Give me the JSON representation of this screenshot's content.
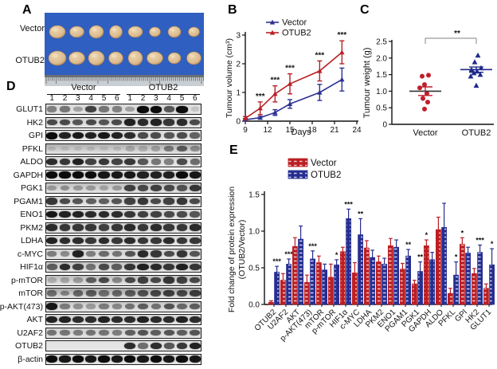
{
  "panel_labels": {
    "A": "A",
    "B": "B",
    "C": "C",
    "D": "D",
    "E": "E"
  },
  "panel_a": {
    "photo_bg": "#2f5fc0",
    "tumor_fill": "#dcba8e",
    "tumor_edge": "#a87e4f",
    "ruler_bg": "#c9ced3",
    "rows": [
      {
        "label": "Vector",
        "y": 24,
        "sizes": [
          [
            10,
            8
          ],
          [
            9,
            7
          ],
          [
            9,
            8
          ],
          [
            8,
            8
          ],
          [
            9,
            7
          ],
          [
            7,
            6
          ],
          [
            8,
            7
          ],
          [
            7,
            6
          ]
        ]
      },
      {
        "label": "OTUB2",
        "y": 57,
        "sizes": [
          [
            11,
            9
          ],
          [
            10,
            8
          ],
          [
            10,
            9
          ],
          [
            9,
            8
          ],
          [
            9,
            9
          ],
          [
            10,
            8
          ],
          [
            8,
            7
          ],
          [
            9,
            8
          ]
        ]
      }
    ]
  },
  "panel_d": {
    "group_headers": [
      "Vector",
      "OTUB2"
    ],
    "lanes": [
      "1",
      "2",
      "3",
      "4",
      "5",
      "6",
      "1",
      "2",
      "3",
      "4",
      "5",
      "6"
    ],
    "rows": [
      {
        "label": "GLUT1",
        "bg": "#d9d9d9",
        "bands": [
          0.45,
          0.5,
          0.3,
          0.75,
          0.5,
          0.45,
          0.3,
          1.0,
          1.0,
          0.65,
          1.0,
          0.12
        ]
      },
      {
        "label": "HK2",
        "bg": "#d4d4d4",
        "bands": [
          0.7,
          0.7,
          0.65,
          0.7,
          0.65,
          0.7,
          0.9,
          0.85,
          0.9,
          0.8,
          0.85,
          0.7
        ]
      },
      {
        "label": "GPI",
        "bg": "#dcdcdc",
        "bands": [
          1.0,
          0.9,
          0.95,
          0.9,
          0.95,
          0.9,
          0.85,
          0.7,
          0.7,
          0.65,
          0.7,
          0.6
        ]
      },
      {
        "label": "PFKL",
        "bg": "#aeaeae",
        "bands": [
          0.12,
          0.1,
          0.1,
          0.12,
          0.1,
          0.12,
          0.2,
          0.18,
          0.25,
          0.45,
          0.6,
          0.35
        ]
      },
      {
        "label": "ALDO",
        "bg": "#dcdcdc",
        "bands": [
          0.85,
          0.8,
          0.9,
          0.75,
          0.8,
          0.75,
          0.8,
          0.65,
          0.5,
          0.45,
          0.7,
          0.55
        ]
      },
      {
        "label": "GAPDH",
        "bg": "#d8d8d8",
        "bands": [
          1,
          1,
          1,
          1,
          0.95,
          0.95,
          0.95,
          0.9,
          0.9,
          0.9,
          1,
          0.95
        ]
      },
      {
        "label": "PGK1",
        "bg": "#bfbfbf",
        "bands": [
          0.3,
          0.35,
          0.3,
          0.3,
          0.25,
          0.3,
          0.75,
          0.7,
          0.75,
          0.7,
          0.65,
          0.8
        ]
      },
      {
        "label": "PGAM1",
        "bg": "#d4d4d4",
        "bands": [
          0.8,
          0.7,
          0.65,
          0.6,
          0.6,
          0.65,
          0.75,
          0.8,
          0.7,
          0.75,
          0.8,
          0.7
        ]
      },
      {
        "label": "ENO1",
        "bg": "#d8d8d8",
        "bands": [
          0.95,
          0.9,
          0.9,
          0.85,
          0.85,
          0.85,
          0.8,
          0.75,
          0.75,
          0.7,
          0.7,
          0.65
        ]
      },
      {
        "label": "PKM2",
        "bg": "#d4d4d4",
        "bands": [
          0.85,
          0.8,
          0.8,
          0.8,
          0.75,
          0.8,
          0.85,
          0.8,
          0.85,
          0.8,
          0.8,
          0.85
        ]
      },
      {
        "label": "LDHA",
        "bg": "#d8d8d8",
        "bands": [
          0.9,
          0.85,
          0.85,
          0.8,
          0.85,
          0.8,
          0.85,
          0.8,
          0.8,
          0.85,
          0.8,
          0.8
        ]
      },
      {
        "label": "c-MYC",
        "bg": "#d2d2d2",
        "bands": [
          0.45,
          0.4,
          0.9,
          0.45,
          0.55,
          0.5,
          0.65,
          0.85,
          0.8,
          0.7,
          0.8,
          0.65
        ]
      },
      {
        "label": "HIF1α",
        "bg": "#c6c6c6",
        "bands": [
          0.6,
          0.85,
          0.75,
          0.5,
          0.7,
          0.6,
          0.8,
          0.9,
          0.85,
          0.8,
          0.9,
          0.8
        ]
      },
      {
        "label": "p-mTOR",
        "bg": "#bdbdbd",
        "bands": [
          0.2,
          0.25,
          0.3,
          0.6,
          0.7,
          0.4,
          0.7,
          0.75,
          0.7,
          0.8,
          0.75,
          0.7
        ]
      },
      {
        "label": "mTOR",
        "bg": "#a4a4a4",
        "bands": [
          0.5,
          0.4,
          0.55,
          0.6,
          0.5,
          0.55,
          0.6,
          0.65,
          0.7,
          0.75,
          0.7,
          0.75
        ]
      },
      {
        "label": "p-AKT(473)",
        "bg": "#c9c9c9",
        "bands": [
          0.95,
          0.45,
          0.35,
          0.3,
          0.45,
          0.4,
          0.5,
          0.6,
          0.5,
          0.65,
          0.55,
          0.6
        ]
      },
      {
        "label": "AKT",
        "bg": "#d4d4d4",
        "bands": [
          0.9,
          0.9,
          0.85,
          0.85,
          0.9,
          0.85,
          0.85,
          0.9,
          0.85,
          0.85,
          0.9,
          0.85
        ]
      },
      {
        "label": "U2AF2",
        "bg": "#cfcfcf",
        "bands": [
          0.5,
          0.5,
          0.45,
          0.5,
          0.5,
          0.45,
          0.6,
          0.65,
          0.6,
          0.65,
          0.6,
          0.65
        ]
      },
      {
        "label": "OTUB2",
        "bg": "#e2e2e2",
        "bands": [
          0.03,
          0.03,
          0.03,
          0.03,
          0.03,
          0.03,
          0.85,
          0.55,
          0.85,
          0.65,
          0.8,
          0.9
        ]
      },
      {
        "label": "β-actin",
        "bg": "#d8d8d8",
        "bands": [
          1,
          0.95,
          1,
          0.95,
          1,
          0.95,
          1,
          0.95,
          1,
          0.95,
          1,
          0.95
        ]
      }
    ]
  },
  "chart_data": [
    {
      "id": "tumour-volume",
      "type": "line",
      "xlabel": "Days",
      "ylabel": "Tumour volume (cm³)",
      "x": [
        9,
        11,
        13,
        15,
        19,
        22
      ],
      "xtick_labels": [
        "9",
        "12",
        "15",
        "18",
        "21",
        "24"
      ],
      "xticks": [
        9,
        12,
        15,
        18,
        21,
        24
      ],
      "ytick_labels": [
        "0",
        "1",
        "2",
        "3"
      ],
      "yticks": [
        0,
        1,
        2,
        3
      ],
      "xlim": [
        9,
        24
      ],
      "ylim": [
        0,
        3
      ],
      "series": [
        {
          "name": "Vector",
          "color": "#2d3192",
          "marker": "triangle",
          "values": [
            0.05,
            0.12,
            0.3,
            0.6,
            1.0,
            1.45
          ],
          "errors": [
            0.04,
            0.05,
            0.1,
            0.15,
            0.28,
            0.4
          ]
        },
        {
          "name": "OTUB2",
          "color": "#b92025",
          "marker": "triangle",
          "values": [
            0.1,
            0.45,
            0.95,
            1.3,
            1.75,
            2.4
          ],
          "errors": [
            0.06,
            0.22,
            0.28,
            0.35,
            0.35,
            0.4
          ]
        }
      ],
      "significance": [
        {
          "x": 11,
          "label": "***"
        },
        {
          "x": 13,
          "label": "***"
        },
        {
          "x": 15,
          "label": "***"
        },
        {
          "x": 19,
          "label": "***"
        },
        {
          "x": 22,
          "label": "***"
        }
      ],
      "legend_position": "top-left",
      "grid": false
    },
    {
      "id": "tumour-weight",
      "type": "scatter",
      "ylabel": "Tumour weight (g)",
      "categories": [
        "Vector",
        "OTUB2"
      ],
      "ytick_labels": [
        "0",
        "0.5",
        "1.0",
        "1.5",
        "2.0",
        "2.5"
      ],
      "yticks": [
        0,
        0.5,
        1.0,
        1.5,
        2.0,
        2.5
      ],
      "ylim": [
        0,
        2.5
      ],
      "groups": [
        {
          "name": "Vector",
          "color": "#c01f2a",
          "marker": "circle",
          "mean": 1.0,
          "sem": 0.13,
          "points": [
            [
              -4,
              1.45
            ],
            [
              4,
              1.48
            ],
            [
              -1,
              1.2
            ],
            [
              -7,
              1.1
            ],
            [
              2,
              0.93
            ],
            [
              -3,
              0.78
            ],
            [
              3,
              0.67
            ],
            [
              -1,
              0.46
            ]
          ]
        },
        {
          "name": "OTUB2",
          "color": "#1f2a8a",
          "marker": "triangle",
          "mean": 1.65,
          "sem": 0.08,
          "points": [
            [
              2,
              2.08
            ],
            [
              -2,
              1.88
            ],
            [
              6,
              1.7
            ],
            [
              -6,
              1.65
            ],
            [
              1,
              1.6
            ],
            [
              -3,
              1.55
            ],
            [
              5,
              1.5
            ],
            [
              -7,
              1.45
            ],
            [
              0,
              1.17
            ]
          ]
        }
      ],
      "significance": {
        "label": "**"
      },
      "grid": false
    },
    {
      "id": "fold-change",
      "type": "bar",
      "ylabel_line1": "Fold change of  protein expression",
      "ylabel_line2": "(OTUB2/Vector)",
      "ytick_labels": [
        "0.0",
        "0.5",
        "1.0",
        "1.5"
      ],
      "yticks": [
        0,
        0.5,
        1.0,
        1.5
      ],
      "ylim": [
        0,
        1.5
      ],
      "categories": [
        "OTUB2",
        "U2AF2",
        "AKT",
        "p-AKT(473)",
        "mTOR",
        "p-mTOR",
        "HIF1α",
        "c-MYC",
        "LDHA",
        "PKM2",
        "ENO1",
        "PGAM1",
        "PGK1",
        "GAPDH",
        "ALDO",
        "PFKL",
        "GPI",
        "HK2",
        "GLUT1"
      ],
      "series": [
        {
          "name": "Vector",
          "color": "#bb1f24",
          "hatch": "#efc7c7",
          "values": [
            0.03,
            0.33,
            0.79,
            0.3,
            0.57,
            0.37,
            0.72,
            0.43,
            0.77,
            0.58,
            0.8,
            0.48,
            0.28,
            0.8,
            1.02,
            0.15,
            0.82,
            0.42,
            0.22
          ],
          "errors": [
            0.02,
            0.09,
            0.12,
            0.1,
            0.09,
            0.18,
            0.06,
            0.14,
            0.1,
            0.08,
            0.1,
            0.08,
            0.05,
            0.08,
            0.17,
            0.07,
            0.09,
            0.07,
            0.06
          ]
        },
        {
          "name": "OTUB2",
          "color": "#272e8f",
          "hatch": "#c9d0f2",
          "values": [
            0.44,
            0.55,
            0.89,
            0.62,
            0.47,
            0.54,
            1.17,
            0.95,
            0.64,
            0.55,
            0.78,
            0.66,
            0.45,
            0.61,
            1.05,
            0.4,
            0.7,
            0.71,
            0.54
          ],
          "errors": [
            0.08,
            0.07,
            0.18,
            0.11,
            0.08,
            0.07,
            0.13,
            0.22,
            0.1,
            0.08,
            0.1,
            0.09,
            0.13,
            0.1,
            0.33,
            0.18,
            0.08,
            0.1,
            0.22
          ]
        }
      ],
      "significance": [
        "***",
        "***",
        "",
        "***",
        "",
        "*",
        "***",
        "**",
        "",
        "",
        "",
        "**",
        "**",
        "*",
        "",
        "*",
        "*",
        "***",
        "*"
      ],
      "sig_on": [
        "otub2",
        "otub2",
        "",
        "otub2",
        "",
        "otub2",
        "otub2",
        "otub2",
        "",
        "",
        "",
        "otub2",
        "otub2",
        "vector",
        "",
        "otub2",
        "vector",
        "otub2",
        "otub2"
      ],
      "legend_position": "top-left",
      "grid": false
    }
  ]
}
